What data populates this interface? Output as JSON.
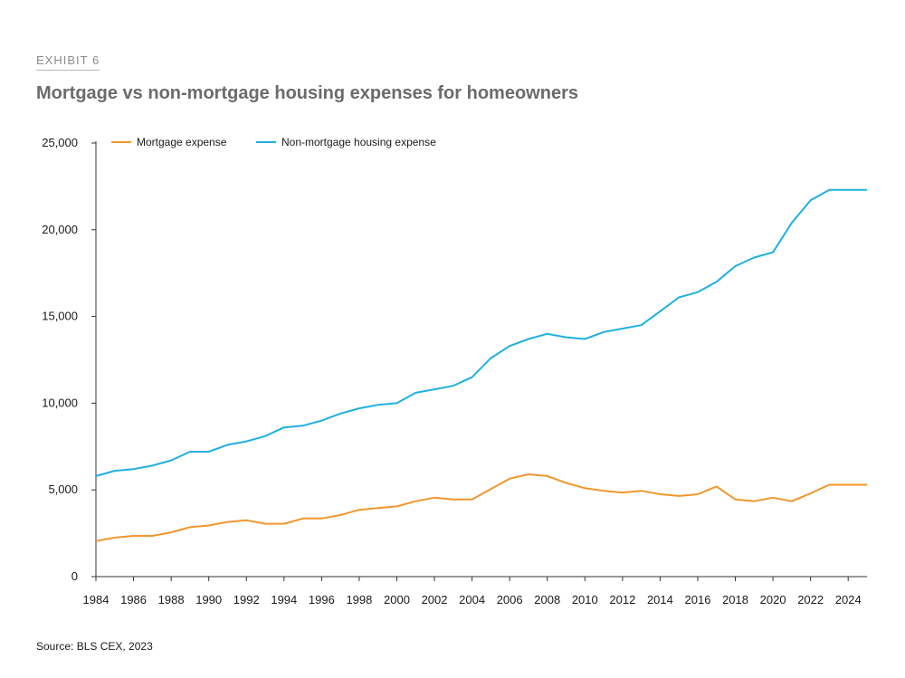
{
  "header": {
    "exhibit": "EXHIBIT 6",
    "title": "Mortgage vs non-mortgage housing expenses for homeowners"
  },
  "footer": {
    "source": "Source: BLS CEX, 2023"
  },
  "colors": {
    "mortgage": "#f0962e",
    "non_mortgage": "#1fb0e0",
    "axis": "#333333"
  },
  "chart_data": {
    "type": "line",
    "title": "Mortgage vs non-mortgage housing expenses for homeowners",
    "xlabel": "",
    "ylabel": "",
    "xlim": [
      1984,
      2025
    ],
    "ylim": [
      0,
      25000
    ],
    "grid": false,
    "legend_position": "top-left",
    "x_ticks": [
      "1984",
      "1986",
      "1988",
      "1990",
      "1992",
      "1994",
      "1996",
      "1998",
      "2000",
      "2002",
      "2004",
      "2006",
      "2008",
      "2010",
      "2012",
      "2014",
      "2016",
      "2018",
      "2020",
      "2022",
      "2024"
    ],
    "y_ticks": [
      "0",
      "5,000",
      "10,000",
      "15,000",
      "20,000",
      "25,000"
    ],
    "y_tick_values": [
      0,
      5000,
      10000,
      15000,
      20000,
      25000
    ],
    "x": [
      1984,
      1985,
      1986,
      1987,
      1988,
      1989,
      1990,
      1991,
      1992,
      1993,
      1994,
      1995,
      1996,
      1997,
      1998,
      1999,
      2000,
      2001,
      2002,
      2003,
      2004,
      2005,
      2006,
      2007,
      2008,
      2009,
      2010,
      2011,
      2012,
      2013,
      2014,
      2015,
      2016,
      2017,
      2018,
      2019,
      2020,
      2021,
      2022,
      2023,
      2024,
      2025
    ],
    "series": [
      {
        "name": "Mortgage expense",
        "color": "#f0962e",
        "values": [
          2050,
          2250,
          2350,
          2350,
          2550,
          2850,
          2950,
          3150,
          3250,
          3050,
          3050,
          3350,
          3350,
          3550,
          3850,
          3950,
          4050,
          4350,
          4550,
          4450,
          4450,
          5050,
          5650,
          5900,
          5800,
          5400,
          5100,
          4950,
          4850,
          4950,
          4750,
          4650,
          4750,
          5200,
          4450,
          4350,
          4550,
          4350,
          4800,
          5300,
          5300,
          5300
        ]
      },
      {
        "name": "Non-mortgage housing expense",
        "color": "#1fb0e0",
        "values": [
          5800,
          6100,
          6200,
          6400,
          6700,
          7200,
          7200,
          7600,
          7800,
          8100,
          8600,
          8700,
          9000,
          9400,
          9700,
          9900,
          10000,
          10600,
          10800,
          11000,
          11500,
          12600,
          13300,
          13700,
          14000,
          13800,
          13700,
          14100,
          14300,
          14500,
          15300,
          16100,
          16400,
          17000,
          17900,
          18400,
          18700,
          20400,
          21700,
          22300,
          22300,
          22300
        ]
      }
    ]
  }
}
